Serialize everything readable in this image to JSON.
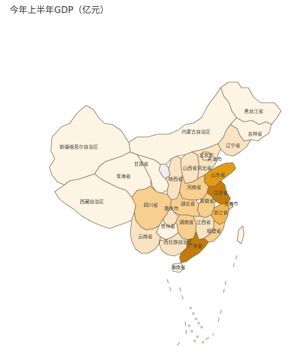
{
  "chart_data": {
    "type": "choropleth-map",
    "title": "今年上半年GDP（亿元）",
    "color_scale": [
      "#fdf4e3",
      "#f9e3c2",
      "#f7cf8f",
      "#f4b74e",
      "#e39a16",
      "#c47b0b"
    ],
    "no_data_color": "#eeeeee",
    "regions": [
      {
        "name": "黑龙江省",
        "value": 6500
      },
      {
        "name": "吉林省",
        "value": 5800
      },
      {
        "name": "辽宁省",
        "value": 12300
      },
      {
        "name": "内蒙古自治区",
        "value": 8600
      },
      {
        "name": "新疆维吾尔自治区",
        "value": 7000
      },
      {
        "name": "西藏自治区",
        "value": 1000
      },
      {
        "name": "青海省",
        "value": 1600
      },
      {
        "name": "甘肃省",
        "value": 4600
      },
      {
        "name": "宁夏",
        "value": null
      },
      {
        "name": "陕西省",
        "value": 14700
      },
      {
        "name": "山西省",
        "value": 10900
      },
      {
        "name": "北京市",
        "value": 19000
      },
      {
        "name": "天津市",
        "value": 7600
      },
      {
        "name": "河北省",
        "value": 19800
      },
      {
        "name": "山东省",
        "value": 41000
      },
      {
        "name": "河南省",
        "value": 29600
      },
      {
        "name": "江苏省",
        "value": 58000
      },
      {
        "name": "上海市",
        "value": 21000
      },
      {
        "name": "安徽省",
        "value": 21300
      },
      {
        "name": "湖北省",
        "value": 24700
      },
      {
        "name": "浙江省",
        "value": 36000
      },
      {
        "name": "四川省",
        "value": 26600
      },
      {
        "name": "重庆市",
        "value": 13800
      },
      {
        "name": "湖南省",
        "value": 22000
      },
      {
        "name": "江西省",
        "value": 14700
      },
      {
        "name": "福建省",
        "value": 24200
      },
      {
        "name": "贵州省",
        "value": 9600
      },
      {
        "name": "云南省",
        "value": 13800
      },
      {
        "name": "广西壮族自治区",
        "value": 12200
      },
      {
        "name": "广东省",
        "value": 60000
      },
      {
        "name": "海南省",
        "value": 3500
      },
      {
        "name": "台湾省",
        "value": 2000
      }
    ]
  }
}
